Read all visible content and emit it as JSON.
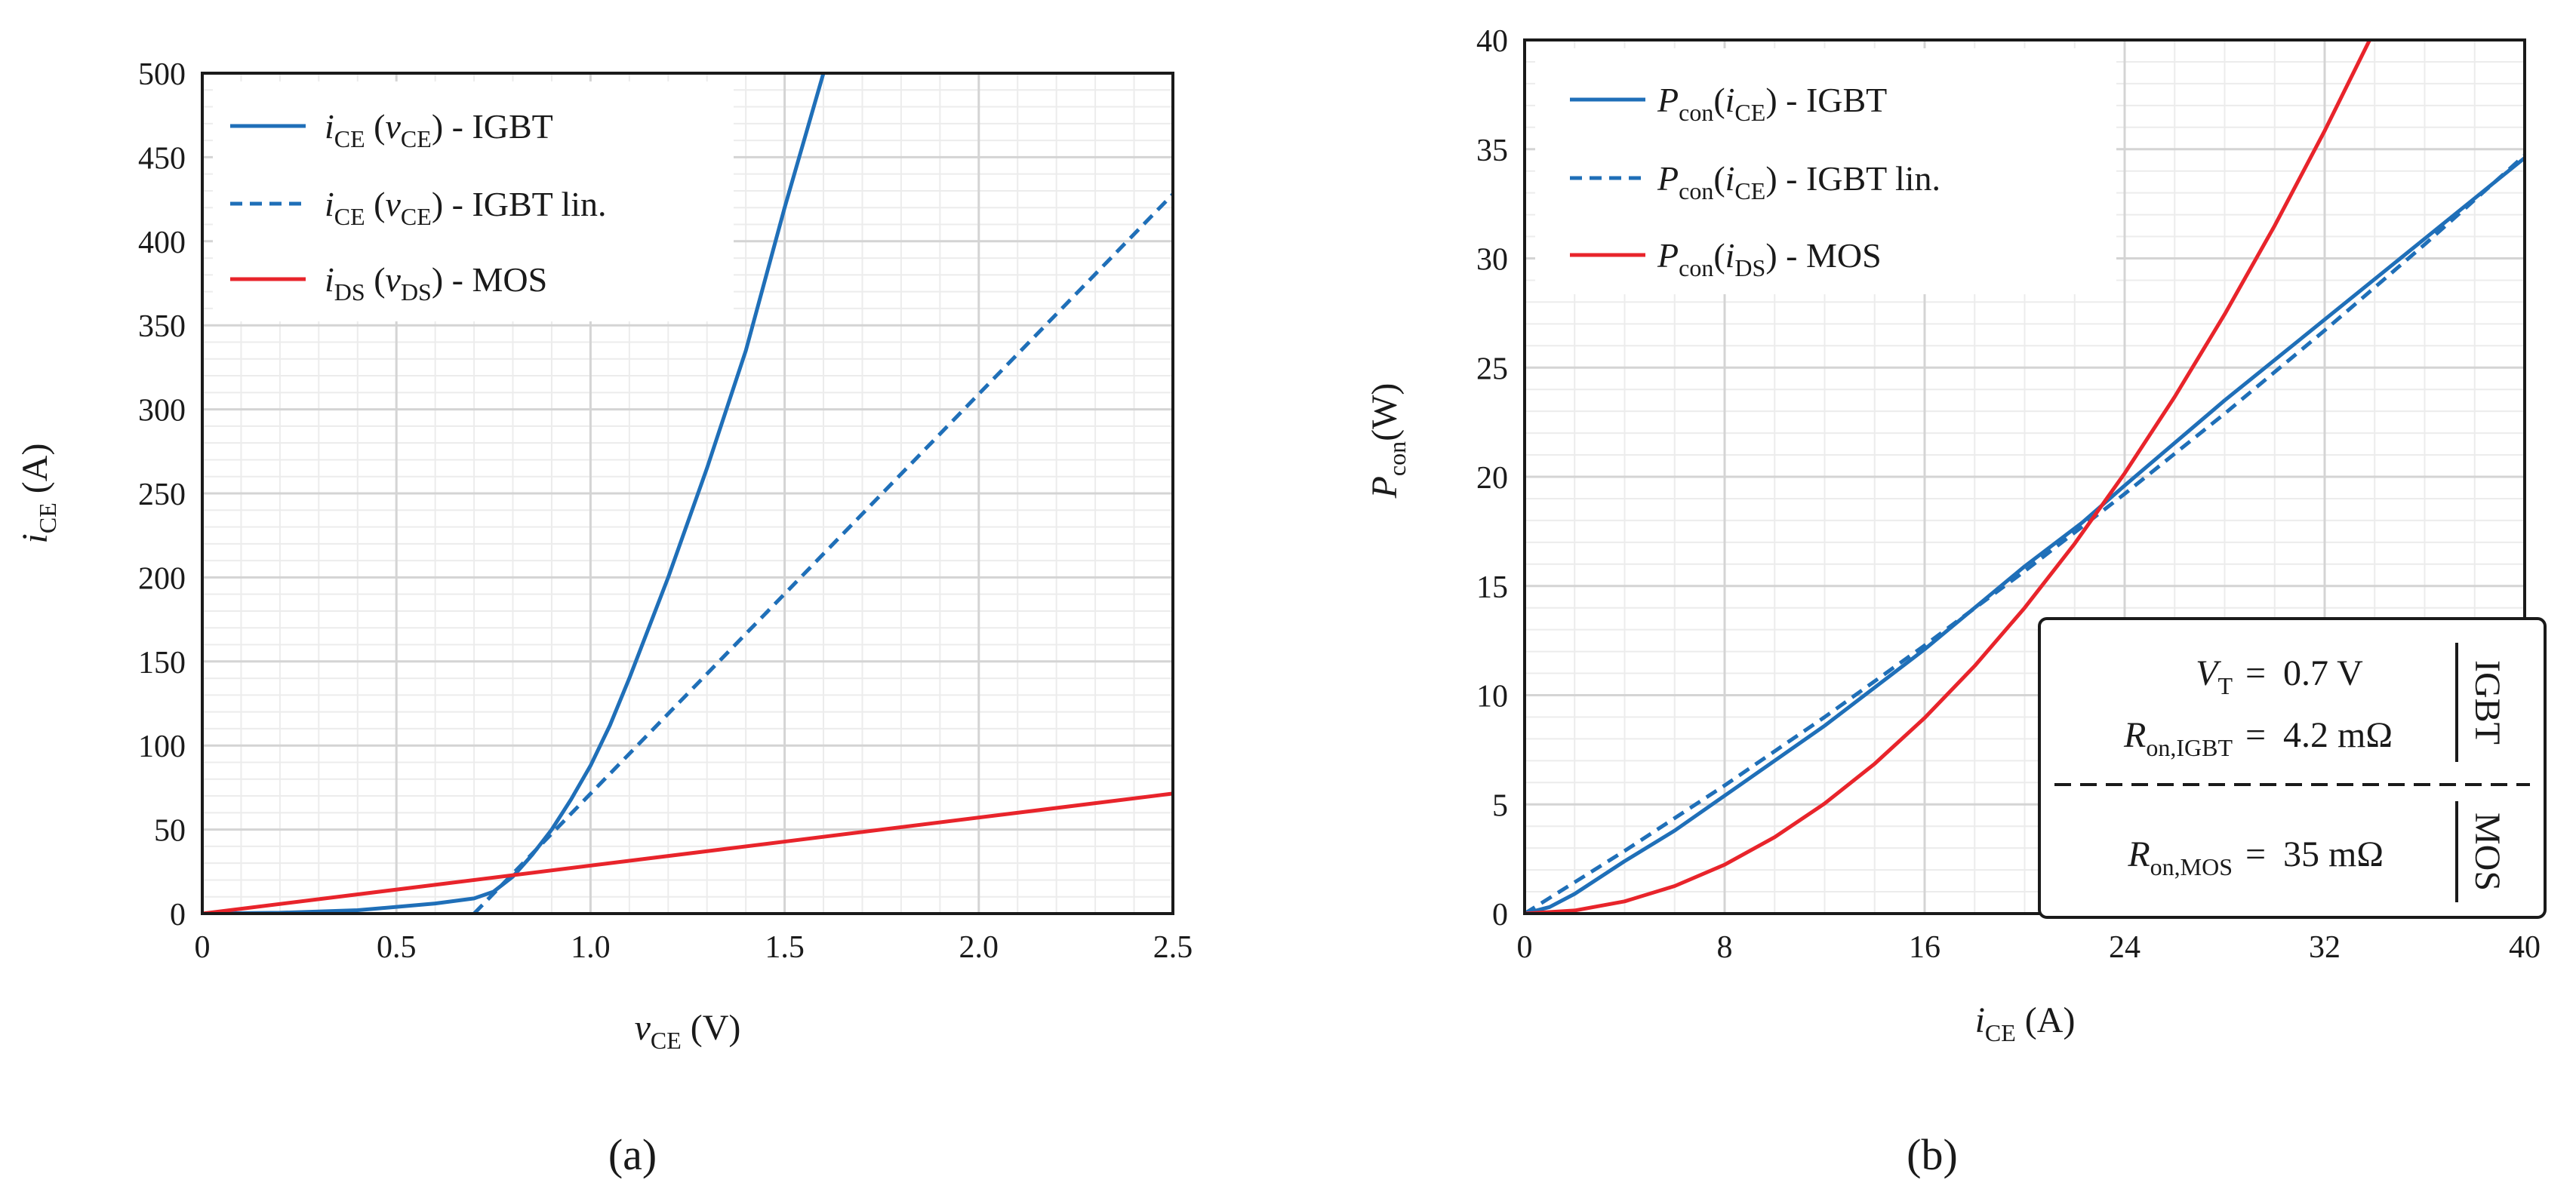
{
  "chart_data": [
    {
      "type": "line",
      "panel_label": "(a)",
      "xlabel": {
        "var": "v",
        "sub": "CE",
        "unit": " (V)"
      },
      "ylabel": {
        "var": "i",
        "sub": "CE",
        "unit": " (A)"
      },
      "xlim": [
        0,
        2.5
      ],
      "ylim": [
        0,
        500
      ],
      "x_ticks": [
        0,
        0.5,
        1.0,
        1.5,
        2.0,
        2.5
      ],
      "x_tick_labels": [
        "0",
        "0.5",
        "1.0",
        "1.5",
        "2.0",
        "2.5"
      ],
      "y_ticks": [
        0,
        50,
        100,
        150,
        200,
        250,
        300,
        350,
        400,
        450,
        500
      ],
      "y_tick_labels": [
        "0",
        "50",
        "100",
        "150",
        "200",
        "250",
        "300",
        "350",
        "400",
        "450",
        "500"
      ],
      "grid": true,
      "legend_position": "top-left",
      "series": [
        {
          "name": "iCE (vCE) - IGBT",
          "legend": {
            "var": "i",
            "sub": "CE",
            "arg_var": "v",
            "arg_sub": "CE",
            "suffix": " - IGBT"
          },
          "color": "#1f6fb8",
          "dash": "solid",
          "x": [
            0,
            0.2,
            0.4,
            0.5,
            0.6,
            0.7,
            0.75,
            0.8,
            0.85,
            0.9,
            0.95,
            1.0,
            1.05,
            1.1,
            1.2,
            1.3,
            1.4,
            1.5,
            1.6
          ],
          "y": [
            0,
            0.5,
            2,
            4,
            6,
            9,
            13,
            22,
            35,
            50,
            68,
            88,
            112,
            140,
            200,
            265,
            335,
            420,
            500
          ]
        },
        {
          "name": "iCE (vCE) - IGBT lin.",
          "legend": {
            "var": "i",
            "sub": "CE",
            "arg_var": "v",
            "arg_sub": "CE",
            "suffix": " - IGBT lin."
          },
          "color": "#1f6fb8",
          "dash": "dashed",
          "x": [
            0.7,
            2.5
          ],
          "y": [
            0,
            428
          ]
        },
        {
          "name": "iDS (vDS) - MOS",
          "legend": {
            "var": "i",
            "sub": "DS",
            "arg_var": "v",
            "arg_sub": "DS",
            "suffix": " - MOS"
          },
          "color": "#e8242b",
          "dash": "solid",
          "x": [
            0,
            2.5
          ],
          "y": [
            0,
            71.4
          ]
        }
      ]
    },
    {
      "type": "line",
      "panel_label": "(b)",
      "xlabel": {
        "var": "i",
        "sub": "CE",
        "unit": " (A)"
      },
      "ylabel": {
        "var": "P",
        "sub": "con",
        "unit": "(W)"
      },
      "xlim": [
        0,
        40
      ],
      "ylim": [
        0,
        40
      ],
      "x_ticks": [
        0,
        8,
        16,
        24,
        32,
        40
      ],
      "x_tick_labels": [
        "0",
        "8",
        "16",
        "24",
        "32",
        "40"
      ],
      "y_ticks": [
        0,
        5,
        10,
        15,
        20,
        25,
        30,
        35,
        40
      ],
      "y_tick_labels": [
        "0",
        "5",
        "10",
        "15",
        "20",
        "25",
        "30",
        "35",
        "40"
      ],
      "grid": true,
      "legend_position": "top-left",
      "series": [
        {
          "name": "Pcon(iCE) - IGBT",
          "legend": {
            "var": "P",
            "sub": "con",
            "arg_var": "i",
            "arg_sub": "CE",
            "suffix": " - IGBT"
          },
          "color": "#1f6fb8",
          "dash": "solid",
          "x": [
            0,
            1,
            2,
            4,
            6,
            8,
            12,
            16,
            20,
            22.3,
            24,
            28,
            32,
            36,
            40
          ],
          "y": [
            0,
            0.3,
            0.9,
            2.4,
            3.8,
            5.4,
            8.6,
            12.1,
            15.9,
            17.9,
            19.6,
            23.5,
            27.2,
            30.9,
            34.6
          ]
        },
        {
          "name": "Pcon(iCE) - IGBT lin.",
          "legend": {
            "var": "P",
            "sub": "con",
            "arg_var": "i",
            "arg_sub": "CE",
            "suffix": " - IGBT lin."
          },
          "color": "#1f6fb8",
          "dash": "dashed",
          "x": [
            0,
            4,
            8,
            12,
            16,
            20,
            24,
            28,
            32,
            36,
            40
          ],
          "y": [
            0,
            2.87,
            5.87,
            9.0,
            12.28,
            15.68,
            19.22,
            22.89,
            26.7,
            30.64,
            34.72
          ]
        },
        {
          "name": "Pcon(iDS) - MOS",
          "legend": {
            "var": "P",
            "sub": "con",
            "arg_var": "i",
            "arg_sub": "DS",
            "suffix": " - MOS"
          },
          "color": "#e8242b",
          "dash": "solid",
          "x": [
            0,
            2,
            4,
            6,
            8,
            10,
            12,
            14,
            16,
            18,
            20,
            22,
            24,
            26,
            28,
            30,
            32,
            33.8
          ],
          "y": [
            0,
            0.14,
            0.56,
            1.26,
            2.24,
            3.5,
            5.04,
            6.86,
            8.96,
            11.34,
            14.0,
            16.94,
            20.16,
            23.66,
            27.44,
            31.5,
            35.84,
            40.0
          ]
        }
      ],
      "parameter_box": {
        "vt": {
          "var": "V",
          "sub": "T",
          "value": "0.7 V"
        },
        "ron_igbt": {
          "var": "R",
          "sub": "on,IGBT",
          "value": "4.2 mΩ"
        },
        "ron_mos": {
          "var": "R",
          "sub": "on,MOS",
          "value": "35 mΩ"
        },
        "eq": "=",
        "igbt_tag": "IGBT",
        "mos_tag": "MOS"
      }
    }
  ]
}
